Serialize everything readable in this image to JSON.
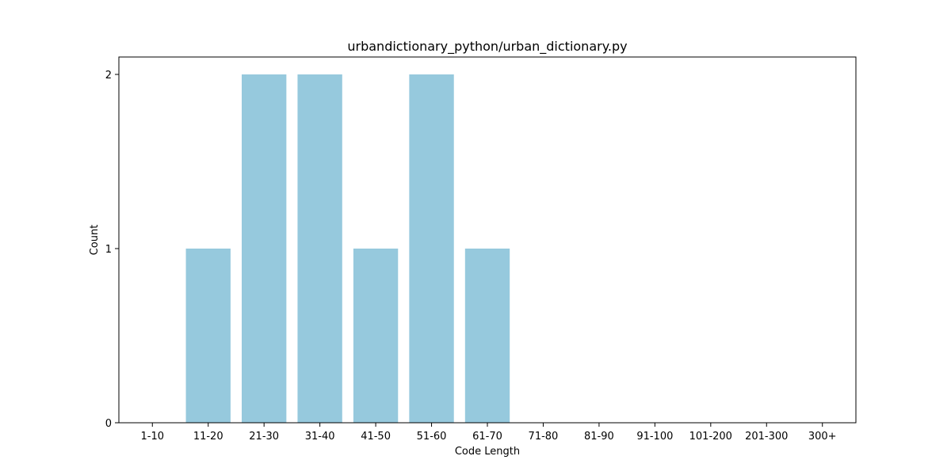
{
  "chart_data": {
    "type": "bar",
    "title": "urbandictionary_python/urban_dictionary.py",
    "xlabel": "Code Length",
    "ylabel": "Count",
    "categories": [
      "1-10",
      "11-20",
      "21-30",
      "31-40",
      "41-50",
      "51-60",
      "61-70",
      "71-80",
      "81-90",
      "91-100",
      "101-200",
      "201-300",
      "300+"
    ],
    "values": [
      0,
      1,
      2,
      2,
      1,
      2,
      1,
      0,
      0,
      0,
      0,
      0,
      0
    ],
    "ylim": [
      0,
      2.1
    ],
    "yticks": [
      0,
      1,
      2
    ],
    "grid": false,
    "bar_color": "#96c9dd"
  }
}
